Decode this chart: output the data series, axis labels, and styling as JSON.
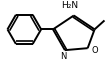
{
  "bg_color": "#ffffff",
  "line_color": "#000000",
  "line_width": 1.4,
  "text_color": "#000000",
  "nh2_label": "H₂N",
  "n_label": "N",
  "o_label": "O",
  "figsize": [
    1.08,
    0.65
  ],
  "dpi": 100,
  "xlim": [
    0,
    108
  ],
  "ylim": [
    0,
    65
  ]
}
